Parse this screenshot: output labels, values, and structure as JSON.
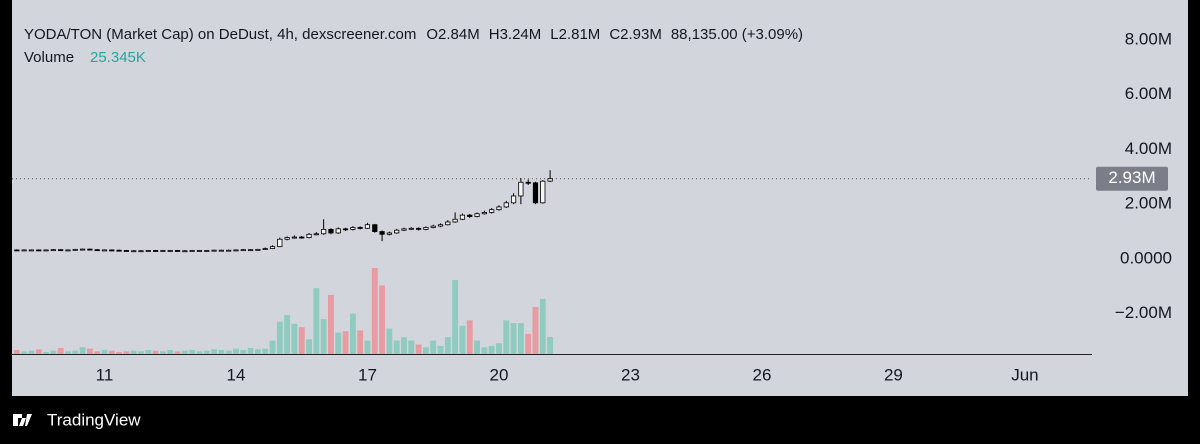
{
  "chart_data": {
    "type": "candlestick",
    "title": "YODA/TON (Market Cap) on DeDust, 4h, dexscreener.com",
    "legend": [
      "O2.84M",
      "H3.24M",
      "L2.81M",
      "C2.93M",
      "88,135.00 (+3.09%)"
    ],
    "footer": "TradingView",
    "up_color": "#f4f4f4",
    "down_color": "#000000",
    "wick_color": "#000000",
    "volume_up_color": "#8fcbbf",
    "volume_down_color": "#e89ba0",
    "last_price": {
      "value": 2930000,
      "label": "2.93M"
    },
    "xlim": [
      8.89,
      33.53
    ],
    "xticks": [
      11,
      14,
      17,
      20,
      23,
      26,
      29,
      {
        "value": 32,
        "label": "Jun"
      }
    ],
    "ylim": [
      -3470000,
      9090000
    ],
    "yticks": [
      {
        "value": -2000000,
        "label": "−2.00M"
      },
      {
        "value": 0,
        "label": "0.0000"
      },
      {
        "value": 2000000,
        "label": "2.00M"
      },
      {
        "value": 4000000,
        "label": "4.00M"
      },
      {
        "value": 6000000,
        "label": "6.00M"
      },
      {
        "value": 8000000,
        "label": "8.00M"
      }
    ],
    "x": [
      9,
      9.167,
      9.333,
      9.5,
      9.667,
      9.833,
      10,
      10.167,
      10.333,
      10.5,
      10.667,
      10.833,
      11,
      11.167,
      11.333,
      11.5,
      11.667,
      11.833,
      12,
      12.167,
      12.333,
      12.5,
      12.667,
      12.833,
      13,
      13.167,
      13.333,
      13.5,
      13.667,
      13.833,
      14,
      14.167,
      14.333,
      14.5,
      14.667,
      14.833,
      15,
      15.167,
      15.333,
      15.5,
      15.667,
      15.833,
      16,
      16.167,
      16.333,
      16.5,
      16.667,
      16.833,
      17,
      17.167,
      17.333,
      17.5,
      17.667,
      17.833,
      18,
      18.167,
      18.333,
      18.5,
      18.667,
      18.833,
      19,
      19.167,
      19.333,
      19.5,
      19.667,
      19.833,
      20,
      20.167,
      20.333,
      20.5,
      20.667,
      20.833,
      21,
      21.167
    ],
    "open": [
      330000,
      320000,
      330000,
      330000,
      320000,
      330000,
      340000,
      330000,
      330000,
      350000,
      360000,
      340000,
      330000,
      330000,
      320000,
      310000,
      300000,
      300000,
      300000,
      310000,
      300000,
      310000,
      310000,
      300000,
      300000,
      310000,
      310000,
      310000,
      320000,
      320000,
      320000,
      330000,
      340000,
      340000,
      350000,
      380000,
      450000,
      720000,
      780000,
      800000,
      780000,
      900000,
      920000,
      1080000,
      950000,
      1100000,
      1080000,
      1150000,
      1120000,
      1250000,
      1000000,
      900000,
      950000,
      1050000,
      1100000,
      1120000,
      1080000,
      1150000,
      1200000,
      1250000,
      1350000,
      1450000,
      1600000,
      1550000,
      1650000,
      1700000,
      1800000,
      1900000,
      2050000,
      2300000,
      2800000,
      2780000,
      2050000,
      2840000
    ],
    "high": [
      350000,
      350000,
      350000,
      350000,
      350000,
      360000,
      360000,
      350000,
      370000,
      380000,
      380000,
      360000,
      350000,
      350000,
      340000,
      330000,
      320000,
      320000,
      330000,
      330000,
      330000,
      330000,
      330000,
      320000,
      330000,
      330000,
      330000,
      340000,
      340000,
      340000,
      350000,
      360000,
      360000,
      370000,
      420000,
      500000,
      780000,
      820000,
      860000,
      840000,
      950000,
      980000,
      1450000,
      1120000,
      1150000,
      1140000,
      1200000,
      1190000,
      1320000,
      1280000,
      1040000,
      1000000,
      1100000,
      1140000,
      1160000,
      1150000,
      1190000,
      1250000,
      1300000,
      1420000,
      1700000,
      1660000,
      1640000,
      1700000,
      1760000,
      1860000,
      1960000,
      2120000,
      2400000,
      2950000,
      2900000,
      2820000,
      2880000,
      3240000
    ],
    "low": [
      300000,
      300000,
      310000,
      300000,
      300000,
      310000,
      310000,
      310000,
      310000,
      330000,
      320000,
      310000,
      310000,
      300000,
      290000,
      280000,
      280000,
      280000,
      280000,
      280000,
      280000,
      290000,
      280000,
      280000,
      280000,
      290000,
      290000,
      290000,
      300000,
      300000,
      300000,
      310000,
      320000,
      320000,
      330000,
      360000,
      430000,
      680000,
      740000,
      740000,
      750000,
      860000,
      880000,
      900000,
      920000,
      1020000,
      1040000,
      1080000,
      1100000,
      960000,
      650000,
      860000,
      920000,
      1020000,
      1060000,
      1040000,
      1050000,
      1120000,
      1160000,
      1220000,
      1320000,
      1420000,
      1500000,
      1520000,
      1620000,
      1660000,
      1760000,
      1860000,
      2000000,
      2000000,
      2700000,
      2000000,
      2020000,
      2810000
    ],
    "close": [
      320000,
      330000,
      330000,
      320000,
      330000,
      340000,
      330000,
      330000,
      350000,
      360000,
      340000,
      330000,
      330000,
      320000,
      310000,
      300000,
      300000,
      300000,
      310000,
      300000,
      310000,
      310000,
      300000,
      300000,
      310000,
      310000,
      310000,
      320000,
      320000,
      320000,
      330000,
      340000,
      340000,
      350000,
      380000,
      450000,
      720000,
      780000,
      800000,
      780000,
      900000,
      920000,
      1080000,
      950000,
      1100000,
      1080000,
      1150000,
      1120000,
      1250000,
      1000000,
      900000,
      950000,
      1050000,
      1100000,
      1120000,
      1080000,
      1150000,
      1200000,
      1250000,
      1350000,
      1450000,
      1600000,
      1550000,
      1650000,
      1700000,
      1800000,
      1900000,
      2050000,
      2300000,
      2800000,
      2780000,
      2050000,
      2840000,
      2930000
    ],
    "volume": {
      "name": "Volume",
      "last_label": "25.345K",
      "values": [
        6000,
        4000,
        5000,
        7000,
        3000,
        5000,
        9000,
        4000,
        5000,
        10000,
        8000,
        4000,
        6000,
        5000,
        3000,
        4000,
        5000,
        4000,
        6000,
        5000,
        4000,
        6000,
        4000,
        5000,
        6000,
        4000,
        5000,
        7000,
        6000,
        5000,
        8000,
        6000,
        9000,
        7000,
        8000,
        20000,
        48000,
        58000,
        45000,
        40000,
        22000,
        98000,
        52000,
        88000,
        32000,
        34000,
        60000,
        35000,
        20000,
        128000,
        102000,
        38000,
        20000,
        25000,
        20000,
        14000,
        10000,
        20000,
        12000,
        25000,
        110000,
        42000,
        50000,
        20000,
        10000,
        12000,
        16000,
        50000,
        46000,
        46000,
        30000,
        70000,
        82000,
        25345
      ]
    }
  }
}
